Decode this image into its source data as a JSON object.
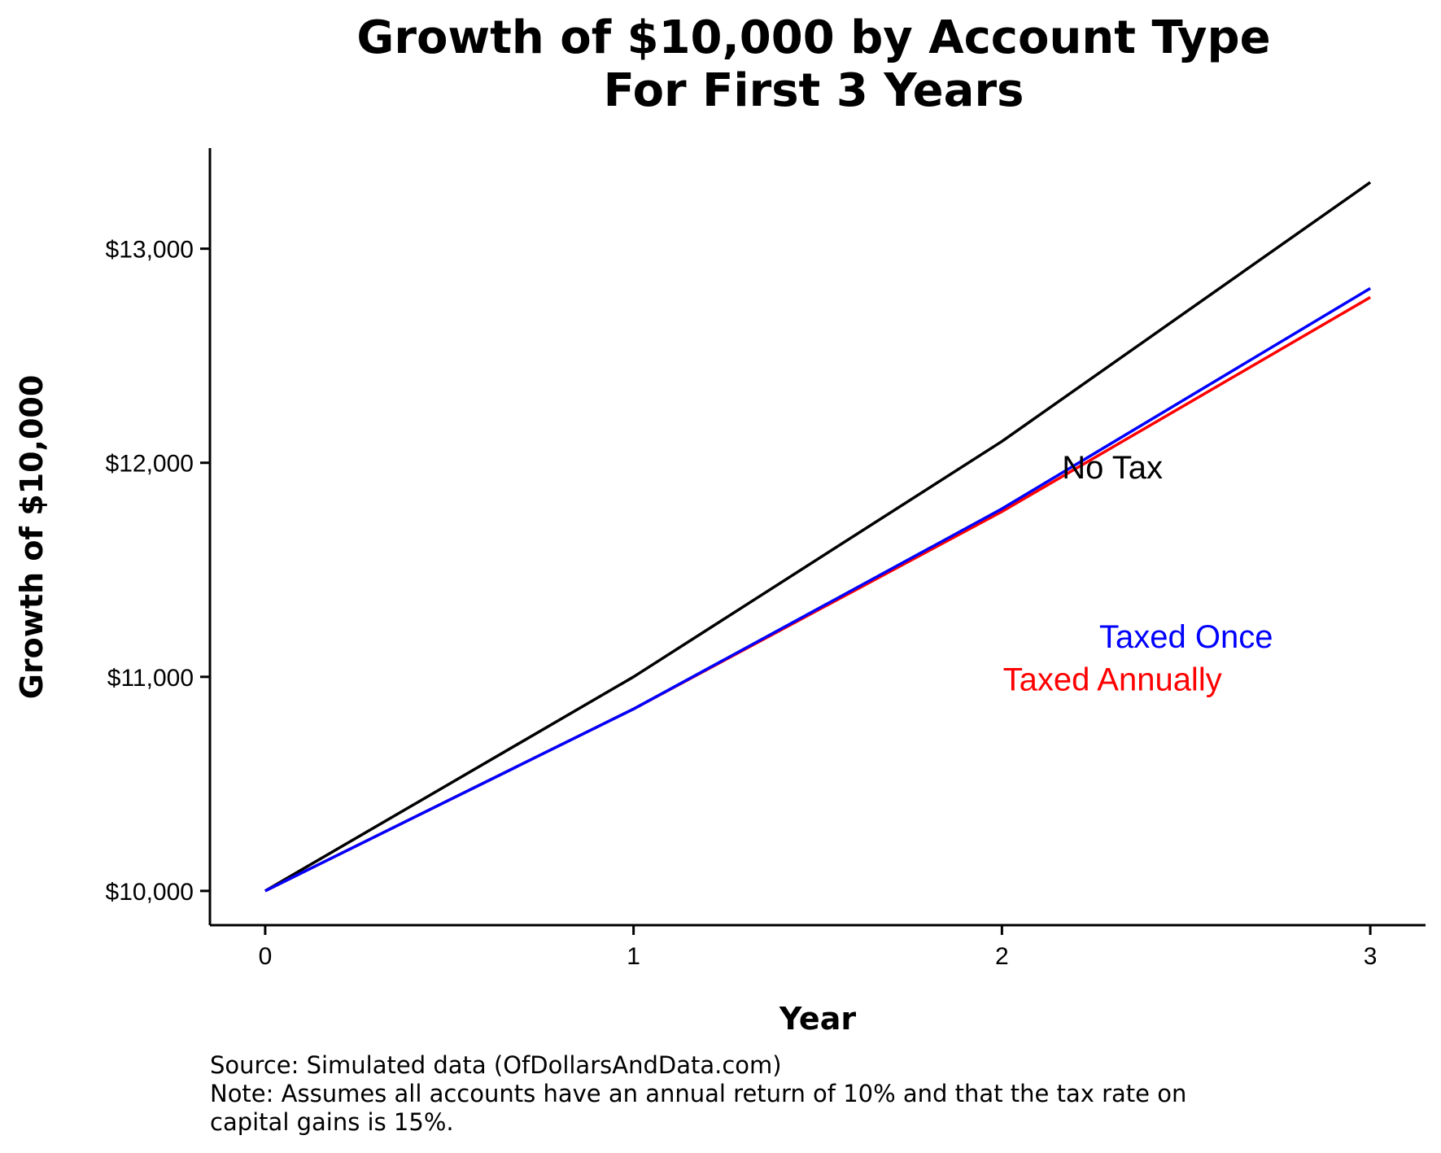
{
  "chart_data": {
    "type": "line",
    "title": [
      "Growth of $10,000 by Account Type",
      "For First 3 Years"
    ],
    "xlabel": "Year",
    "ylabel": "Growth of $10,000",
    "x": [
      0,
      1,
      2,
      3
    ],
    "xlim": [
      -0.15,
      3.15
    ],
    "ylim": [
      9840,
      13470
    ],
    "x_ticks": [
      0,
      1,
      2,
      3
    ],
    "x_tick_labels": [
      "0",
      "1",
      "2",
      "3"
    ],
    "y_ticks": [
      10000,
      11000,
      12000,
      13000
    ],
    "y_tick_labels": [
      "$10,000",
      "$11,000",
      "$12,000",
      "$13,000"
    ],
    "grid": false,
    "legend": "none",
    "series": [
      {
        "name": "No Tax",
        "values": [
          10000,
          11000,
          12100,
          13310
        ],
        "color": "#000000",
        "label_at": [
          2.3,
          11980
        ]
      },
      {
        "name": "Taxed Once",
        "values": [
          10000,
          10850,
          11785,
          12815
        ],
        "color": "#0000ff",
        "label_at": [
          2.5,
          11190
        ]
      },
      {
        "name": "Taxed Annually",
        "values": [
          10000,
          10850,
          11772,
          12773
        ],
        "color": "#ff0000",
        "label_at": [
          2.3,
          10990
        ]
      }
    ]
  },
  "caption": {
    "source": "Source: Simulated data (OfDollarsAndData.com)",
    "note_line1": "Note: Assumes all accounts have an annual return of 10% and that the tax rate on",
    "note_line2": "capital gains is 15%."
  }
}
